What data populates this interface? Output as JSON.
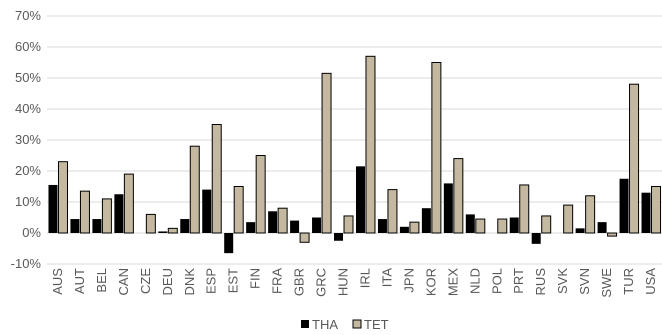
{
  "chart_data": {
    "type": "bar",
    "title": "",
    "xlabel": "",
    "ylabel": "",
    "ylim": [
      -10,
      70
    ],
    "y_ticks": [
      "-10%",
      "0%",
      "10%",
      "20%",
      "30%",
      "40%",
      "50%",
      "60%",
      "70%"
    ],
    "y_tick_values": [
      -10,
      0,
      10,
      20,
      30,
      40,
      50,
      60,
      70
    ],
    "y_unit": "%",
    "grid": true,
    "legend_position": "bottom",
    "categories": [
      "AUS",
      "AUT",
      "BEL",
      "CAN",
      "CZE",
      "DEU",
      "DNK",
      "ESP",
      "EST",
      "FIN",
      "FRA",
      "GBR",
      "GRC",
      "HUN",
      "IRL",
      "ITA",
      "JPN",
      "KOR",
      "MEX",
      "NLD",
      "POL",
      "PRT",
      "RUS",
      "SVK",
      "SVN",
      "SWE",
      "TUR",
      "USA"
    ],
    "series": [
      {
        "name": "THA",
        "color": "#000000",
        "values": [
          15.5,
          4.5,
          4.5,
          12.5,
          0,
          0.5,
          4.5,
          14,
          -6.5,
          3.5,
          7,
          4,
          5,
          -2.5,
          21.5,
          4.5,
          2,
          8,
          16,
          6,
          0,
          5,
          -3.5,
          0,
          1.5,
          3.5,
          17.5,
          13
        ]
      },
      {
        "name": "TET",
        "color": "#c4b9a0",
        "values": [
          23,
          13.5,
          11,
          19,
          6,
          1.5,
          28,
          35,
          15,
          25,
          8,
          -3,
          51.5,
          5.5,
          57,
          14,
          3.5,
          55,
          24,
          4.5,
          4.5,
          15.5,
          5.5,
          9,
          12,
          -1,
          48,
          15
        ]
      }
    ]
  }
}
